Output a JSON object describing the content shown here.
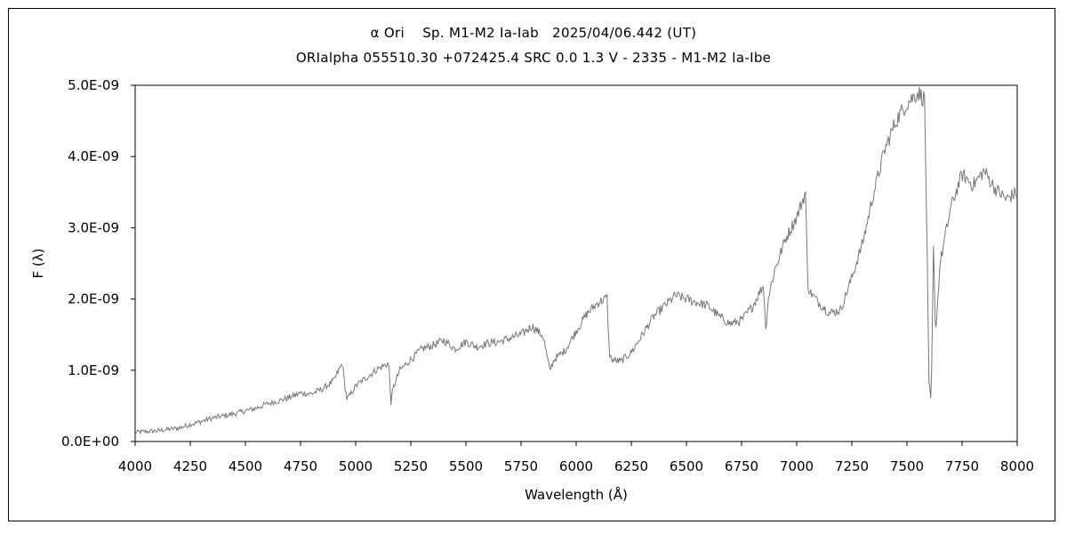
{
  "chart_data": {
    "type": "line",
    "title": "α Ori    Sp. M1-M2 Ia-Iab   2025/04/06.442 (UT)",
    "subtitle": "ORIalpha 055510.30 +072425.4 SRC 0.0 1.3 V - 2335 - M1-M2 Ia-Ibe",
    "xlabel": "Wavelength (Å)",
    "ylabel": "F (λ)",
    "xlim": [
      4000,
      8000
    ],
    "ylim": [
      0,
      5e-09
    ],
    "x_ticks": [
      4000,
      4250,
      4500,
      4750,
      5000,
      5250,
      5500,
      5750,
      6000,
      6250,
      6500,
      6750,
      7000,
      7250,
      7500,
      7750,
      8000
    ],
    "x_tick_labels": [
      "4000",
      "4250",
      "4500",
      "4750",
      "5000",
      "5250",
      "5500",
      "5750",
      "6000",
      "6250",
      "6500",
      "6750",
      "7000",
      "7250",
      "7500",
      "7750",
      "8000"
    ],
    "y_ticks": [
      0,
      1e-09,
      2e-09,
      3e-09,
      4e-09,
      5e-09
    ],
    "y_tick_labels": [
      "0.0E+00",
      "1.0E-09",
      "2.0E-09",
      "3.0E-09",
      "4.0E-09",
      "5.0E-09"
    ],
    "grid": false,
    "legend": "none",
    "line_color": "#777777",
    "series": [
      {
        "x": [
          4000,
          4100,
          4200,
          4250,
          4300,
          4350,
          4400,
          4450,
          4500,
          4550,
          4600,
          4650,
          4700,
          4750,
          4800,
          4850,
          4900,
          4940,
          4950,
          4960,
          4975,
          5000,
          5050,
          5100,
          5150,
          5160,
          5170,
          5200,
          5250,
          5300,
          5350,
          5400,
          5450,
          5500,
          5550,
          5600,
          5650,
          5700,
          5750,
          5800,
          5850,
          5880,
          5900,
          5950,
          6000,
          6050,
          6100,
          6140,
          6150,
          6160,
          6200,
          6250,
          6300,
          6350,
          6400,
          6450,
          6500,
          6550,
          6600,
          6650,
          6700,
          6750,
          6800,
          6850,
          6860,
          6870,
          6900,
          6950,
          7000,
          7040,
          7050,
          7060,
          7100,
          7150,
          7200,
          7250,
          7300,
          7350,
          7400,
          7450,
          7500,
          7550,
          7580,
          7590,
          7600,
          7610,
          7620,
          7630,
          7650,
          7700,
          7750,
          7800,
          7850,
          7900,
          7950,
          8000
        ],
        "y": [
          1.3e-10,
          1.5e-10,
          1.9e-10,
          2.4e-10,
          2.8e-10,
          3.3e-10,
          3.6e-10,
          3.9e-10,
          4.3e-10,
          4.7e-10,
          5.3e-10,
          5.7e-10,
          6.2e-10,
          6.8e-10,
          6.7e-10,
          7.4e-10,
          8.5e-10,
          1.1e-09,
          8e-10,
          6e-10,
          6.5e-10,
          7.8e-10,
          9e-10,
          1.02e-09,
          1.1e-09,
          5.5e-10,
          7.5e-10,
          1e-09,
          1.15e-09,
          1.3e-09,
          1.35e-09,
          1.42e-09,
          1.3e-09,
          1.4e-09,
          1.33e-09,
          1.38e-09,
          1.4e-09,
          1.45e-09,
          1.5e-09,
          1.62e-09,
          1.48e-09,
          1e-09,
          1.15e-09,
          1.28e-09,
          1.55e-09,
          1.8e-09,
          1.95e-09,
          2.02e-09,
          1.25e-09,
          1.15e-09,
          1.12e-09,
          1.25e-09,
          1.5e-09,
          1.75e-09,
          1.9e-09,
          2.05e-09,
          2e-09,
          1.95e-09,
          1.9e-09,
          1.75e-09,
          1.65e-09,
          1.7e-09,
          1.9e-09,
          2.2e-09,
          1.55e-09,
          2e-09,
          2.4e-09,
          2.85e-09,
          3.15e-09,
          3.5e-09,
          2.2e-09,
          2.1e-09,
          1.95e-09,
          1.8e-09,
          1.85e-09,
          2.3e-09,
          2.8e-09,
          3.5e-09,
          4.1e-09,
          4.5e-09,
          4.75e-09,
          4.9e-09,
          4.8e-09,
          3e-09,
          8e-10,
          5.5e-10,
          2.7e-09,
          1.5e-09,
          2.5e-09,
          3.3e-09,
          3.75e-09,
          3.6e-09,
          3.8e-09,
          3.55e-09,
          3.4e-09,
          3.5e-09
        ]
      }
    ]
  }
}
